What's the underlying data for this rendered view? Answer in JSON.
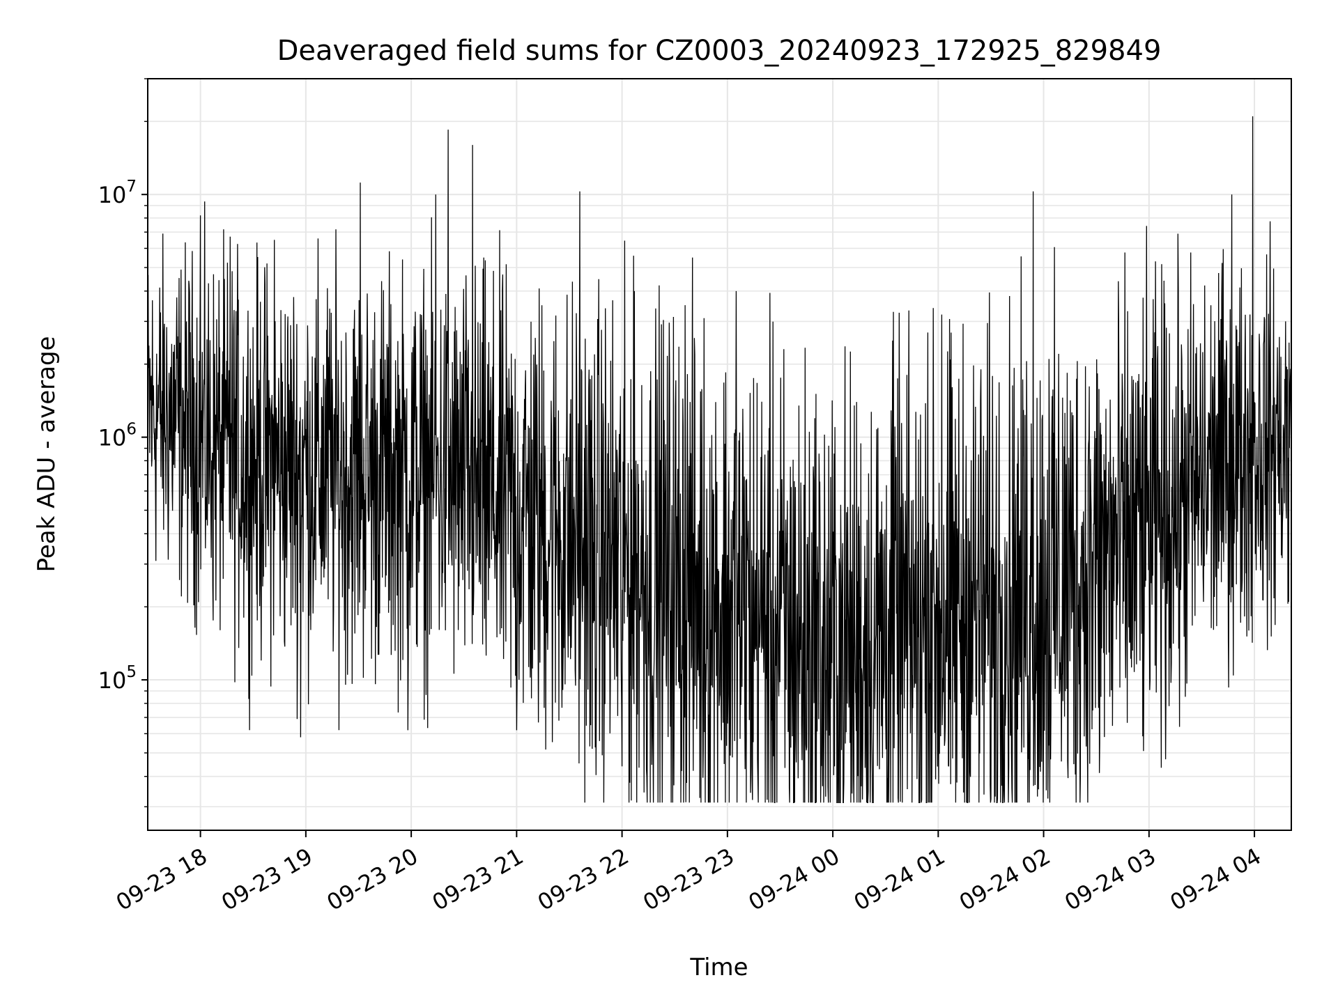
{
  "chart_data": {
    "type": "line",
    "title": "Deaveraged field sums for CZ0003_20240923_172925_829849",
    "xlabel": "Time",
    "ylabel": "Peak ADU - average",
    "yscale": "log",
    "ylim": [
      24000,
      30000000
    ],
    "xlim": [
      "2024-09-23 17:30",
      "2024-09-24 04:21"
    ],
    "grid": true,
    "line_color": "#000000",
    "x_ticks": [
      {
        "label": "09-23 18",
        "t": "2024-09-23 18:00"
      },
      {
        "label": "09-23 19",
        "t": "2024-09-23 19:00"
      },
      {
        "label": "09-23 20",
        "t": "2024-09-23 20:00"
      },
      {
        "label": "09-23 21",
        "t": "2024-09-23 21:00"
      },
      {
        "label": "09-23 22",
        "t": "2024-09-23 22:00"
      },
      {
        "label": "09-23 23",
        "t": "2024-09-23 23:00"
      },
      {
        "label": "09-24 00",
        "t": "2024-09-24 00:00"
      },
      {
        "label": "09-24 01",
        "t": "2024-09-24 01:00"
      },
      {
        "label": "09-24 02",
        "t": "2024-09-24 02:00"
      },
      {
        "label": "09-24 03",
        "t": "2024-09-24 03:00"
      },
      {
        "label": "09-24 04",
        "t": "2024-09-24 04:00"
      }
    ],
    "y_ticks": [
      {
        "base": "10",
        "exp": "5",
        "value": 100000
      },
      {
        "base": "10",
        "exp": "6",
        "value": 1000000
      },
      {
        "base": "10",
        "exp": "7",
        "value": 10000000
      }
    ],
    "series": [
      {
        "x": [
          "2024-09-23 17:30",
          "2024-09-23 17:45",
          "2024-09-23 18:00",
          "2024-09-23 18:15",
          "2024-09-23 18:30",
          "2024-09-23 18:45",
          "2024-09-23 19:00",
          "2024-09-23 19:15",
          "2024-09-23 19:30",
          "2024-09-23 19:45",
          "2024-09-23 20:00",
          "2024-09-23 20:15",
          "2024-09-23 20:30",
          "2024-09-23 20:45",
          "2024-09-23 21:00",
          "2024-09-23 21:15",
          "2024-09-23 21:30",
          "2024-09-23 21:45",
          "2024-09-23 22:00",
          "2024-09-23 22:15",
          "2024-09-23 22:30",
          "2024-09-23 22:45",
          "2024-09-23 23:00",
          "2024-09-23 23:15",
          "2024-09-23 23:30",
          "2024-09-23 23:45",
          "2024-09-24 00:00",
          "2024-09-24 00:15",
          "2024-09-24 00:30",
          "2024-09-24 00:45",
          "2024-09-24 01:00",
          "2024-09-24 01:15",
          "2024-09-24 01:30",
          "2024-09-24 01:45",
          "2024-09-24 02:00",
          "2024-09-24 02:15",
          "2024-09-24 02:30",
          "2024-09-24 02:45",
          "2024-09-24 03:00",
          "2024-09-24 03:15",
          "2024-09-24 03:30",
          "2024-09-24 03:45",
          "2024-09-24 04:00",
          "2024-09-24 04:15",
          "2024-09-24 04:21"
        ],
        "y": [
          1300000,
          1200000,
          1000000,
          850000,
          800000,
          750000,
          750000,
          720000,
          700000,
          720000,
          700000,
          680000,
          620000,
          560000,
          500000,
          450000,
          400000,
          350000,
          300000,
          270000,
          250000,
          230000,
          200000,
          180000,
          160000,
          145000,
          130000,
          140000,
          150000,
          160000,
          175000,
          190000,
          200000,
          220000,
          240000,
          260000,
          300000,
          350000,
          420000,
          520000,
          650000,
          800000,
          900000,
          950000,
          900000
        ],
        "spikes": [
          {
            "t": "2024-09-23 18:00",
            "value": 8200000
          },
          {
            "t": "2024-09-23 18:17",
            "value": 6700000
          },
          {
            "t": "2024-09-23 18:42",
            "value": 6500000
          },
          {
            "t": "2024-09-23 19:31",
            "value": 11200000
          },
          {
            "t": "2024-09-23 19:58",
            "value": 6500000
          },
          {
            "t": "2024-09-23 20:14",
            "value": 10000000
          },
          {
            "t": "2024-09-23 20:21",
            "value": 18500000
          },
          {
            "t": "2024-09-23 20:35",
            "value": 16000000
          },
          {
            "t": "2024-09-23 21:36",
            "value": 10300000
          },
          {
            "t": "2024-09-23 22:07",
            "value": 4000000
          },
          {
            "t": "2024-09-23 22:36",
            "value": 3500000
          },
          {
            "t": "2024-09-23 23:05",
            "value": 4000000
          },
          {
            "t": "2024-09-24 00:34",
            "value": 2500000
          },
          {
            "t": "2024-09-24 00:54",
            "value": 2700000
          },
          {
            "t": "2024-09-24 01:02",
            "value": 3200000
          },
          {
            "t": "2024-09-24 01:54",
            "value": 10300000
          },
          {
            "t": "2024-09-24 02:03",
            "value": 2100000
          },
          {
            "t": "2024-09-24 03:47",
            "value": 10000000
          },
          {
            "t": "2024-09-24 03:59",
            "value": 21000000
          }
        ],
        "dips": [
          {
            "t": "2024-09-23 18:57",
            "value": 58000
          },
          {
            "t": "2024-09-23 19:58",
            "value": 62000
          },
          {
            "t": "2024-09-23 21:00",
            "value": 62000
          },
          {
            "t": "2024-09-23 21:43",
            "value": 52000
          },
          {
            "t": "2024-09-23 22:00",
            "value": 44000
          },
          {
            "t": "2024-09-23 23:14",
            "value": 40000
          },
          {
            "t": "2024-09-23 23:56",
            "value": 33000
          },
          {
            "t": "2024-09-24 00:11",
            "value": 34000
          },
          {
            "t": "2024-09-24 00:48",
            "value": 39000
          },
          {
            "t": "2024-09-24 01:06",
            "value": 44000
          },
          {
            "t": "2024-09-24 01:59",
            "value": 46000
          },
          {
            "t": "2024-09-24 02:04",
            "value": 47000
          },
          {
            "t": "2024-09-24 02:32",
            "value": 55000
          }
        ]
      }
    ]
  }
}
